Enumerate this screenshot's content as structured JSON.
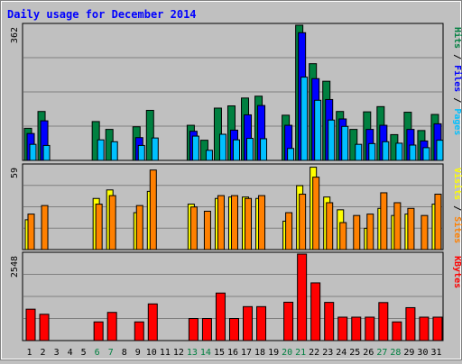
{
  "chart_data": [
    {
      "type": "bar",
      "title": "Daily usage for December 2014",
      "panel": "hits-files-pages",
      "y_label_text": "362",
      "ylim": [
        0,
        362
      ],
      "grid": true,
      "legend_labels": [
        "Pages",
        "Files",
        "Hits"
      ],
      "legend_separator": "/",
      "legend_colors": [
        "#00c0ff",
        "#0000ff",
        "#008040"
      ],
      "categories": [
        "1",
        "2",
        "3",
        "4",
        "5",
        "6",
        "7",
        "8",
        "9",
        "10",
        "11",
        "12",
        "13",
        "14",
        "15",
        "16",
        "17",
        "18",
        "19",
        "20",
        "21",
        "22",
        "23",
        "24",
        "25",
        "26",
        "27",
        "28",
        "29",
        "30",
        "31"
      ],
      "weekend_days": [
        "6",
        "7",
        "13",
        "14",
        "20",
        "21",
        "27",
        "28"
      ],
      "series": [
        {
          "name": "Hits",
          "color": "#008040",
          "values": [
            86,
            131,
            0,
            0,
            0,
            104,
            83,
            0,
            90,
            134,
            0,
            0,
            94,
            54,
            140,
            146,
            167,
            172,
            0,
            121,
            362,
            259,
            212,
            131,
            83,
            130,
            144,
            69,
            129,
            80,
            123
          ]
        },
        {
          "name": "Files",
          "color": "#0000ff",
          "values": [
            72,
            106,
            0,
            0,
            0,
            0,
            0,
            0,
            61,
            0,
            0,
            0,
            78,
            0,
            0,
            81,
            122,
            147,
            0,
            94,
            342,
            219,
            163,
            111,
            0,
            83,
            94,
            0,
            83,
            52,
            98
          ]
        },
        {
          "name": "Pages",
          "color": "#00c0ff",
          "values": [
            43,
            40,
            0,
            0,
            0,
            55,
            50,
            0,
            40,
            60,
            0,
            0,
            65,
            27,
            70,
            55,
            59,
            58,
            0,
            32,
            223,
            161,
            108,
            91,
            43,
            45,
            50,
            46,
            41,
            34,
            54
          ]
        }
      ]
    },
    {
      "type": "bar",
      "panel": "visits-sites",
      "y_label_text": "59",
      "ylim": [
        0,
        59
      ],
      "grid": true,
      "legend_labels": [
        "Sites",
        "Visits"
      ],
      "legend_separator": "/",
      "legend_colors": [
        "#ff8000",
        "#ffff00"
      ],
      "categories": [
        "1",
        "2",
        "3",
        "4",
        "5",
        "6",
        "7",
        "8",
        "9",
        "10",
        "11",
        "12",
        "13",
        "14",
        "15",
        "16",
        "17",
        "18",
        "19",
        "20",
        "21",
        "22",
        "23",
        "24",
        "25",
        "26",
        "27",
        "28",
        "29",
        "30",
        "31"
      ],
      "series": [
        {
          "name": "Visits",
          "color": "#ffff00",
          "values": [
            21,
            0,
            0,
            0,
            0,
            36,
            42,
            0,
            26,
            41,
            0,
            0,
            32,
            0,
            36,
            37,
            37,
            36,
            0,
            20,
            45,
            58,
            37,
            28,
            0,
            15,
            29,
            24,
            25,
            0,
            32
          ],
          "note": "values where only the sites bar is visible are omitted (0)"
        },
        {
          "name": "Sites",
          "color": "#ff8000",
          "values": [
            25,
            31,
            0,
            0,
            0,
            32,
            38,
            0,
            31,
            56,
            0,
            0,
            30,
            27,
            38,
            38,
            36,
            38,
            0,
            26,
            39,
            51,
            33,
            19,
            24,
            25,
            40,
            33,
            29,
            24,
            39
          ]
        }
      ]
    },
    {
      "type": "bar",
      "panel": "kbytes",
      "y_label_text": "2548",
      "ylim": [
        0,
        2548
      ],
      "grid": true,
      "legend_labels": [
        "KBytes"
      ],
      "legend_colors": [
        "#ff0000"
      ],
      "categories": [
        "1",
        "2",
        "3",
        "4",
        "5",
        "6",
        "7",
        "8",
        "9",
        "10",
        "11",
        "12",
        "13",
        "14",
        "15",
        "16",
        "17",
        "18",
        "19",
        "20",
        "21",
        "22",
        "23",
        "24",
        "25",
        "26",
        "27",
        "28",
        "29",
        "30",
        "31"
      ],
      "series": [
        {
          "name": "KBytes",
          "color": "#ff0000",
          "values": [
            925,
            775,
            0,
            0,
            0,
            550,
            830,
            0,
            550,
            1080,
            0,
            0,
            650,
            650,
            1400,
            650,
            1000,
            1000,
            0,
            1130,
            2548,
            1700,
            1125,
            690,
            690,
            690,
            1120,
            550,
            970,
            690,
            690
          ]
        }
      ]
    }
  ]
}
